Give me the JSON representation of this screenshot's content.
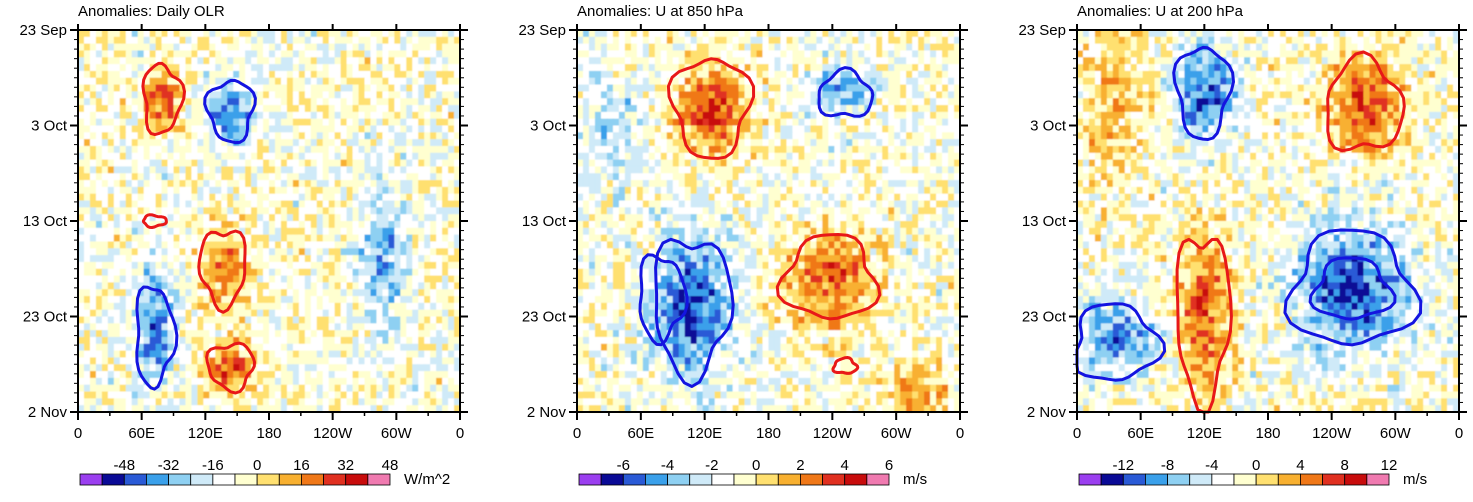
{
  "chart_data": [
    {
      "type": "heatmap",
      "title": "Anomalies: Daily OLR",
      "variable": "olr",
      "x_ticks": [
        "0",
        "60E",
        "120E",
        "180",
        "120W",
        "60W",
        "0"
      ],
      "y_ticks": [
        "23 Sep",
        "3 Oct",
        "13 Oct",
        "23 Oct",
        "2 Nov"
      ],
      "colorbar": {
        "labels": [
          "-48",
          "-32",
          "-16",
          "0",
          "16",
          "32",
          "48"
        ],
        "units": "W/m^2"
      }
    },
    {
      "type": "heatmap",
      "title": "Anomalies: U at 850 hPa",
      "variable": "u850",
      "x_ticks": [
        "0",
        "60E",
        "120E",
        "180",
        "120W",
        "60W",
        "0"
      ],
      "y_ticks": [
        "23 Sep",
        "3 Oct",
        "13 Oct",
        "23 Oct",
        "2 Nov"
      ],
      "colorbar": {
        "labels": [
          "-6",
          "-4",
          "-2",
          "0",
          "2",
          "4",
          "6"
        ],
        "units": "m/s"
      }
    },
    {
      "type": "heatmap",
      "title": "Anomalies: U at 200 hPa",
      "variable": "u200",
      "x_ticks": [
        "0",
        "60E",
        "120E",
        "180",
        "120W",
        "60W",
        "0"
      ],
      "y_ticks": [
        "23 Sep",
        "3 Oct",
        "13 Oct",
        "23 Oct",
        "2 Nov"
      ],
      "colorbar": {
        "labels": [
          "-12",
          "-8",
          "-4",
          "0",
          "4",
          "8",
          "12"
        ],
        "units": "m/s"
      }
    }
  ],
  "palette": [
    "#9b3ff0",
    "#0a0a96",
    "#2a5ad6",
    "#3aa0ea",
    "#8ed0f2",
    "#cfeaf8",
    "#ffffff",
    "#ffffd0",
    "#ffe070",
    "#f8b030",
    "#f07818",
    "#e03020",
    "#c80c0c",
    "#f07ab0"
  ],
  "contour_colors": {
    "positive": "#e81818",
    "negative": "#1414e0"
  }
}
